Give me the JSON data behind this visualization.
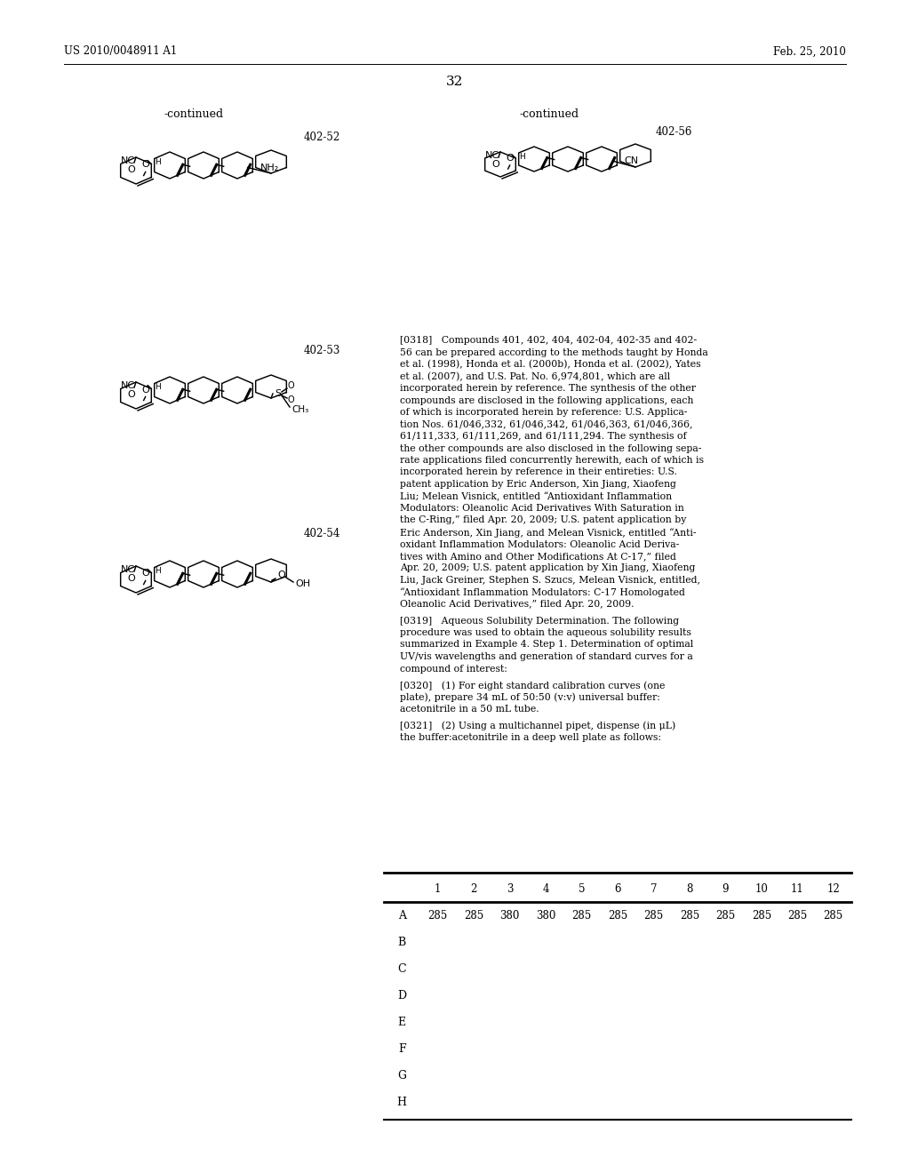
{
  "page_header_left": "US 2010/0048911 A1",
  "page_header_right": "Feb. 25, 2010",
  "page_number": "32",
  "background_color": "#ffffff",
  "text_color": "#000000",
  "continued_label_left": "-continued",
  "continued_label_right": "-continued",
  "compound_label_52": "402-52",
  "compound_label_53": "402-53",
  "compound_label_54": "402-54",
  "compound_label_56": "402-56",
  "table_columns": [
    "1",
    "2",
    "3",
    "4",
    "5",
    "6",
    "7",
    "8",
    "9",
    "10",
    "11",
    "12"
  ],
  "table_rows": [
    "A",
    "B",
    "C",
    "D",
    "E",
    "F",
    "G",
    "H"
  ],
  "table_row_A_values": [
    "285",
    "285",
    "380",
    "380",
    "285",
    "285",
    "285",
    "285",
    "285",
    "285",
    "285",
    "285"
  ],
  "para_318_lines": [
    "[0318]   Compounds 401, 402, 404, 402-04, 402-35 and 402-",
    "56 can be prepared according to the methods taught by Honda",
    "et al. (1998), Honda et al. (2000b), Honda et al. (2002), Yates",
    "et al. (2007), and U.S. Pat. No. 6,974,801, which are all",
    "incorporated herein by reference. The synthesis of the other",
    "compounds are disclosed in the following applications, each",
    "of which is incorporated herein by reference: U.S. Applica-",
    "tion Nos. 61/046,332, 61/046,342, 61/046,363, 61/046,366,",
    "61/111,333, 61/111,269, and 61/111,294. The synthesis of",
    "the other compounds are also disclosed in the following sepa-",
    "rate applications filed concurrently herewith, each of which is",
    "incorporated herein by reference in their entireties: U.S.",
    "patent application by Eric Anderson, Xin Jiang, Xiaofeng",
    "Liu; Melean Visnick, entitled “Antioxidant Inflammation",
    "Modulators: Oleanolic Acid Derivatives With Saturation in",
    "the C-Ring,” filed Apr. 20, 2009; U.S. patent application by",
    "Eric Anderson, Xin Jiang, and Melean Visnick, entitled “Anti-",
    "oxidant Inflammation Modulators: Oleanolic Acid Deriva-",
    "tives with Amino and Other Modifications At C-17,” filed",
    "Apr. 20, 2009; U.S. patent application by Xin Jiang, Xiaofeng",
    "Liu, Jack Greiner, Stephen S. Szucs, Melean Visnick, entitled,",
    "“Antioxidant Inflammation Modulators: C-17 Homologated",
    "Oleanolic Acid Derivatives,” filed Apr. 20, 2009."
  ],
  "para_319_lines": [
    "[0319]   Aqueous Solubility Determination. The following",
    "procedure was used to obtain the aqueous solubility results",
    "summarized in Example 4. Step 1. Determination of optimal",
    "UV/vis wavelengths and generation of standard curves for a",
    "compound of interest:"
  ],
  "para_320_lines": [
    "[0320]   (1) For eight standard calibration curves (one",
    "plate), prepare 34 mL of 50:50 (v:v) universal buffer:",
    "acetonitrile in a 50 mL tube."
  ],
  "para_321_lines": [
    "[0321]   (2) Using a multichannel pipet, dispense (in μL)",
    "the buffer:acetonitrile in a deep well plate as follows:"
  ]
}
